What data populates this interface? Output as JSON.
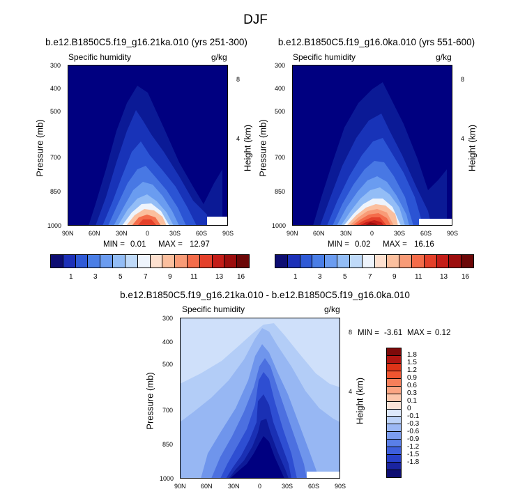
{
  "title": "DJF",
  "colors": {
    "abs_scale": [
      "#0d0d72",
      "#1c30b8",
      "#2f5ad6",
      "#4a7ee6",
      "#6b9cf0",
      "#93bdf6",
      "#bfdaf9",
      "#eef4fc",
      "#fde0cf",
      "#fbbf9e",
      "#f89b77",
      "#f46c4a",
      "#e4402a",
      "#c41d18",
      "#9c0d0d",
      "#6c0707"
    ],
    "diff_scale": [
      "#0d0d72",
      "#1a24a0",
      "#2840c8",
      "#3e5fdc",
      "#5a7fe8",
      "#7b9cf0",
      "#9cb8f4",
      "#bcd2f8",
      "#dde8fb",
      "#fbe3d6",
      "#fcc6ab",
      "#fba583",
      "#f67f5a",
      "#ef5530",
      "#de3418",
      "#b21612",
      "#7e0a0a"
    ]
  },
  "chart_data": [
    {
      "type": "contour",
      "title": "b.e12.B1850C5.f19_g16.21ka.010 (yrs 251-300)",
      "left_string": "Specific humidity",
      "right_string": "g/kg",
      "xlabel": "",
      "ylabel": "Pressure (mb)",
      "ylabel_right": "Height (km)",
      "x_ticks": [
        "90N",
        "60N",
        "30N",
        "0",
        "30S",
        "60S",
        "90S"
      ],
      "y_ticks": [
        300,
        400,
        500,
        700,
        850,
        1000
      ],
      "y_right_ticks": [
        8,
        4
      ],
      "ylim": [
        1000,
        300
      ],
      "min_label": "MIN =",
      "min_value": "0.01",
      "max_label": "MAX =",
      "max_value": "12.97",
      "colorbar_labels": [
        "1",
        "3",
        "5",
        "7",
        "9",
        "11",
        "13",
        "16"
      ]
    },
    {
      "type": "contour",
      "title": "b.e12.B1850C5.f19_g16.0ka.010 (yrs 551-600)",
      "left_string": "Specific humidity",
      "right_string": "g/kg",
      "xlabel": "",
      "ylabel": "Pressure (mb)",
      "ylabel_right": "Height (km)",
      "x_ticks": [
        "90N",
        "60N",
        "30N",
        "0",
        "30S",
        "60S",
        "90S"
      ],
      "y_ticks": [
        300,
        400,
        500,
        700,
        850,
        1000
      ],
      "y_right_ticks": [
        8,
        4
      ],
      "ylim": [
        1000,
        300
      ],
      "min_label": "MIN =",
      "min_value": "0.02",
      "max_label": "MAX =",
      "max_value": "16.16",
      "colorbar_labels": [
        "1",
        "3",
        "5",
        "7",
        "9",
        "11",
        "13",
        "16"
      ]
    },
    {
      "type": "contour",
      "title": "b.e12.B1850C5.f19_g16.21ka.010 - b.e12.B1850C5.f19_g16.0ka.010",
      "left_string": "Specific humidity",
      "right_string": "g/kg",
      "xlabel": "",
      "ylabel": "Pressure (mb)",
      "ylabel_right": "Height (km)",
      "x_ticks": [
        "90N",
        "60N",
        "30N",
        "0",
        "30S",
        "60S",
        "90S"
      ],
      "y_ticks": [
        300,
        400,
        500,
        700,
        850,
        1000
      ],
      "y_right_ticks": [
        8,
        4
      ],
      "ylim": [
        1000,
        300
      ],
      "min_label": "MIN =",
      "min_value": "-3.61",
      "max_label": "MAX =",
      "max_value": "0.12",
      "colorbar_labels": [
        "1.8",
        "1.5",
        "1.2",
        "0.9",
        "0.6",
        "0.3",
        "0.1",
        "0",
        "-0.1",
        "-0.3",
        "-0.6",
        "-0.9",
        "-1.2",
        "-1.5",
        "-1.8"
      ]
    }
  ]
}
